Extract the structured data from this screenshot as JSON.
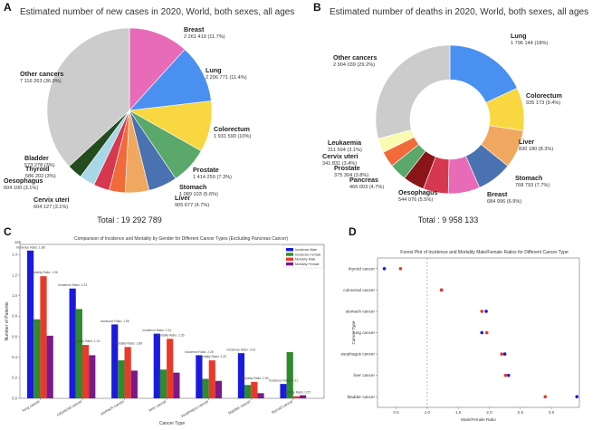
{
  "chart_data": [
    {
      "panel": "A",
      "type": "pie",
      "title": "Estimated number of new cases in 2020, World, both sexes, all ages",
      "total": "Total : 19 292 789",
      "slices": [
        {
          "name": "Breast",
          "value": 2261419,
          "text": "2 261 419 (11.7%)",
          "color": "#e86bb8"
        },
        {
          "name": "Lung",
          "value": 2206771,
          "text": "2 206 771 (11.4%)",
          "color": "#4a90f0"
        },
        {
          "name": "Colorectum",
          "value": 1931590,
          "text": "1 931 590 (10%)",
          "color": "#f8d740"
        },
        {
          "name": "Prostate",
          "value": 1414259,
          "text": "1 414 259 (7.3%)",
          "color": "#5aa86a"
        },
        {
          "name": "Stomach",
          "value": 1089103,
          "text": "1 089 103 (5.6%)",
          "color": "#4a72b0"
        },
        {
          "name": "Liver",
          "value": 905677,
          "text": "905 677 (4.7%)",
          "color": "#f0a860"
        },
        {
          "name": "Cervix uteri",
          "value": 604127,
          "text": "604 127 (3.1%)",
          "color": "#f06a3a"
        },
        {
          "name": "Oesophagus",
          "value": 604100,
          "text": "604 100 (3.1%)",
          "color": "#d63850"
        },
        {
          "name": "Thyroid",
          "value": 586202,
          "text": "586 202 (3%)",
          "color": "#a8d8e8"
        },
        {
          "name": "Bladder",
          "value": 573278,
          "text": "573 278 (3%)",
          "color": "#234d20"
        },
        {
          "name": "Other cancers",
          "value": 7116263,
          "text": "7 116 263 (36.9%)",
          "color": "#cccccc"
        }
      ]
    },
    {
      "panel": "B",
      "type": "pie",
      "subtype": "donut",
      "title": "Estimated number of deaths in 2020, World, both sexes, all ages",
      "total": "Total : 9 958 133",
      "slices": [
        {
          "name": "Lung",
          "value": 1796144,
          "text": "1 796 144 (18%)",
          "color": "#4a90f0"
        },
        {
          "name": "Colorectum",
          "value": 935173,
          "text": "935 173 (9.4%)",
          "color": "#f8d740"
        },
        {
          "name": "Liver",
          "value": 830180,
          "text": "830 180 (8.3%)",
          "color": "#f0a860"
        },
        {
          "name": "Stomach",
          "value": 768793,
          "text": "768 793 (7.7%)",
          "color": "#4a72b0"
        },
        {
          "name": "Breast",
          "value": 684996,
          "text": "684 996 (6.9%)",
          "color": "#e86bb8"
        },
        {
          "name": "Oesophagus",
          "value": 544076,
          "text": "544 076 (5.5%)",
          "color": "#d63850"
        },
        {
          "name": "Pancreas",
          "value": 466003,
          "text": "466 003 (4.7%)",
          "color": "#8a1518"
        },
        {
          "name": "Prostate",
          "value": 375304,
          "text": "375 304 (3.8%)",
          "color": "#5aa86a"
        },
        {
          "name": "Cervix uteri",
          "value": 341831,
          "text": "341 831 (3.4%)",
          "color": "#f06a3a"
        },
        {
          "name": "Leukaemia",
          "value": 311594,
          "text": "311 594 (3.1%)",
          "color": "#fafab0"
        },
        {
          "name": "Other cancers",
          "value": 2904039,
          "text": "2 904 039 (29.2%)",
          "color": "#cccccc"
        }
      ]
    },
    {
      "panel": "C",
      "type": "bar",
      "title": "Comparison of Incidence and Mortality by Gender for Different Cancer Types (Excluding Pancreas Cancer)",
      "xlabel": "Cancer Type",
      "ylabel": "Number of Patients",
      "scale_label": "1e6",
      "ylim": [
        0,
        1.5
      ],
      "yticks": [
        0.0,
        0.2,
        0.4,
        0.6,
        0.8,
        1.0,
        1.2,
        1.4
      ],
      "categories": [
        "lung cancer",
        "colorectal cancer",
        "stomach cancer",
        "liver cancer",
        "esophagus cancer",
        "bladder cancer",
        "thyroid cancer"
      ],
      "series": [
        {
          "name": "Incidence Male",
          "color": "#1a1adf",
          "values": [
            1.44,
            1.07,
            0.72,
            0.63,
            0.42,
            0.44,
            0.14
          ]
        },
        {
          "name": "Incidence Female",
          "color": "#2e8b2e",
          "values": [
            0.77,
            0.87,
            0.37,
            0.28,
            0.19,
            0.13,
            0.45
          ]
        },
        {
          "name": "Mortality Male",
          "color": "#e83a2a",
          "values": [
            1.19,
            0.52,
            0.5,
            0.58,
            0.37,
            0.16,
            0.02
          ]
        },
        {
          "name": "Mortality Female",
          "color": "#7a1a8a",
          "values": [
            0.61,
            0.42,
            0.27,
            0.25,
            0.17,
            0.05,
            0.03
          ]
        }
      ],
      "incidence_ratio_labels": [
        "Incidence Ratio: 1.88",
        "Incidence Ratio: 1.23",
        "Incidence Ratio: 1.95",
        "Incidence Ratio: 2.31",
        "Incidence Ratio: 2.25",
        "Incidence Ratio: 3.41",
        "Incidence Ratio: 0.31"
      ],
      "mortality_ratio_labels": [
        "Mortality Ratio: 1.96",
        "Mortality Ratio: 1.23",
        "Mortality Ratio: 1.88",
        "Mortality Ratio: 2.26",
        "Mortality Ratio: 2.20",
        "Mortality Ratio: 2.90",
        "Mortality Ratio: 0.57"
      ]
    },
    {
      "panel": "D",
      "type": "scatter",
      "title": "Forest Plot of Incidence and Mortality Male/Female Ratios for Different Cancer Type",
      "xlabel": "Male/Female Ratio",
      "ylabel": "Cancer Type",
      "xlim": [
        0.2,
        3.45
      ],
      "xticks": [
        "0.5",
        "1.0",
        "1.5",
        "2.0",
        "2.5",
        "3.0"
      ],
      "reference_line": 1.0,
      "categories": [
        "thyroid cancer",
        "colorectal cancer",
        "stomach cancer",
        "lung cancer",
        "esophagus cancer",
        "liver cancer",
        "bladder cancer"
      ],
      "incidence_ratio": [
        0.31,
        1.23,
        1.95,
        1.88,
        2.25,
        2.31,
        3.41
      ],
      "mortality_ratio": [
        0.57,
        1.23,
        1.88,
        1.96,
        2.2,
        2.26,
        2.9
      ],
      "colors": {
        "incidence": "#1a1adf",
        "mortality": "#e83a2a"
      }
    }
  ],
  "letters": {
    "a": "A",
    "b": "B",
    "c": "C",
    "d": "D"
  }
}
